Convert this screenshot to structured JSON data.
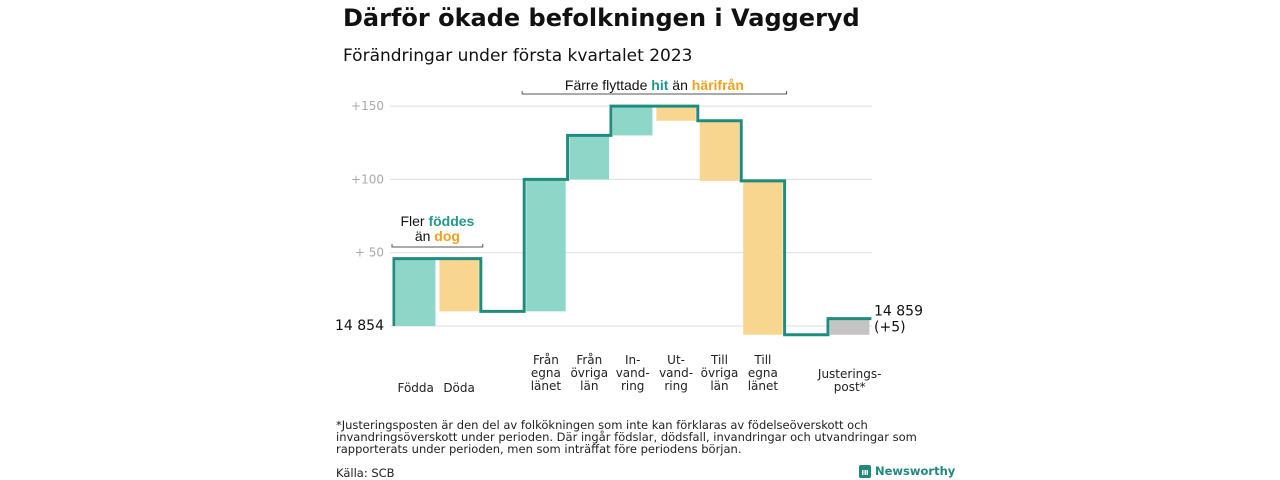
{
  "header": {
    "title": "Därför ökade befolkningen i Vaggeryd",
    "subtitle": "Förändringar under första kvartalet 2023"
  },
  "colors": {
    "increase": "#8ed6c8",
    "decrease": "#f9d690",
    "adjustment": "#c4c4c4",
    "line": "#1e8c7e",
    "teal_text": "#1f9a8a",
    "orange_text": "#f0a21e",
    "grid": "#dddddd",
    "tick": "#aaaaaa"
  },
  "chart_data": {
    "type": "bar",
    "subtype": "waterfall",
    "baseline_label": "14 854",
    "start_value": 14854,
    "end_label": "14 859",
    "end_change_label": "(+5)",
    "end_value": 14859,
    "y_ticks": [
      {
        "value": 50,
        "label": "+ 50"
      },
      {
        "value": 100,
        "label": "+100"
      },
      {
        "value": 150,
        "label": "+150"
      }
    ],
    "ylim": [
      -6,
      150
    ],
    "grid": true,
    "categories": [
      {
        "label_lines": [
          "Födda"
        ],
        "change": 46,
        "kind": "increase"
      },
      {
        "label_lines": [
          "Döda"
        ],
        "change": -36,
        "kind": "decrease"
      },
      {
        "label_lines": [],
        "change": 0,
        "kind": "none"
      },
      {
        "label_lines": [
          "Från",
          "egna",
          "länet"
        ],
        "change": 90,
        "kind": "increase"
      },
      {
        "label_lines": [
          "Från",
          "övriga",
          "län"
        ],
        "change": 30,
        "kind": "increase"
      },
      {
        "label_lines": [
          "In-",
          "vand-",
          "ring"
        ],
        "change": 20,
        "kind": "increase"
      },
      {
        "label_lines": [
          "Ut-",
          "vand-",
          "ring"
        ],
        "change": -10,
        "kind": "decrease"
      },
      {
        "label_lines": [
          "Till",
          "övriga",
          "län"
        ],
        "change": -41,
        "kind": "decrease"
      },
      {
        "label_lines": [
          "Till",
          "egna",
          "länet"
        ],
        "change": -105,
        "kind": "decrease"
      },
      {
        "label_lines": [],
        "change": 0,
        "kind": "none"
      },
      {
        "label_lines": [
          "Justerings-",
          "post*"
        ],
        "change": 11,
        "kind": "adjustment"
      }
    ],
    "annotations": [
      {
        "segments": [
          {
            "lines": [
              [
                {
                  "text": "Fler ",
                  "color": "default"
                },
                {
                  "text": "föddes",
                  "color": "teal"
                }
              ],
              [
                {
                  "text": "än ",
                  "color": "default"
                },
                {
                  "text": "dog",
                  "color": "orange"
                }
              ]
            ]
          }
        ],
        "span": [
          0,
          1
        ]
      },
      {
        "segments": [
          {
            "lines": [
              [
                {
                  "text": "Färre flyttade ",
                  "color": "default"
                },
                {
                  "text": "hit",
                  "color": "teal"
                },
                {
                  "text": " än ",
                  "color": "default"
                },
                {
                  "text": "härifrån",
                  "color": "orange"
                }
              ]
            ]
          }
        ],
        "span": [
          3,
          8
        ]
      }
    ]
  },
  "footnote": "*Justeringsposten är den del av folkökningen som inte kan förklaras av födelseöverskott och invandringsöverskott under perioden. Där ingår födslar, dödsfall, invandringar och utvandringar som rapporterats under perioden, men som inträffat före periodens början.",
  "source": "Källa: SCB",
  "brand": {
    "name": "Newsworthy",
    "icon": "bar-chart-icon"
  }
}
